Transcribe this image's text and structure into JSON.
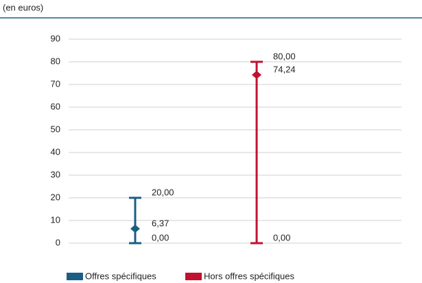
{
  "chart_data": {
    "type": "range",
    "subtitle": "(en euros)",
    "series": [
      {
        "name": "Offres spécifiques",
        "color": "#1b5e85",
        "values": [
          20,
          6.37,
          0
        ],
        "value_labels": [
          "20,00",
          "6,37",
          "0,00"
        ]
      },
      {
        "name": "Hors offres spécifiques",
        "color": "#c1112f",
        "values": [
          80,
          74.24,
          0
        ],
        "value_labels": [
          "80,00",
          "74,24",
          "0,00"
        ]
      }
    ],
    "ylim": [
      0,
      90
    ],
    "yticks": [
      0,
      10,
      20,
      30,
      40,
      50,
      60,
      70,
      80,
      90
    ],
    "grid": true
  }
}
